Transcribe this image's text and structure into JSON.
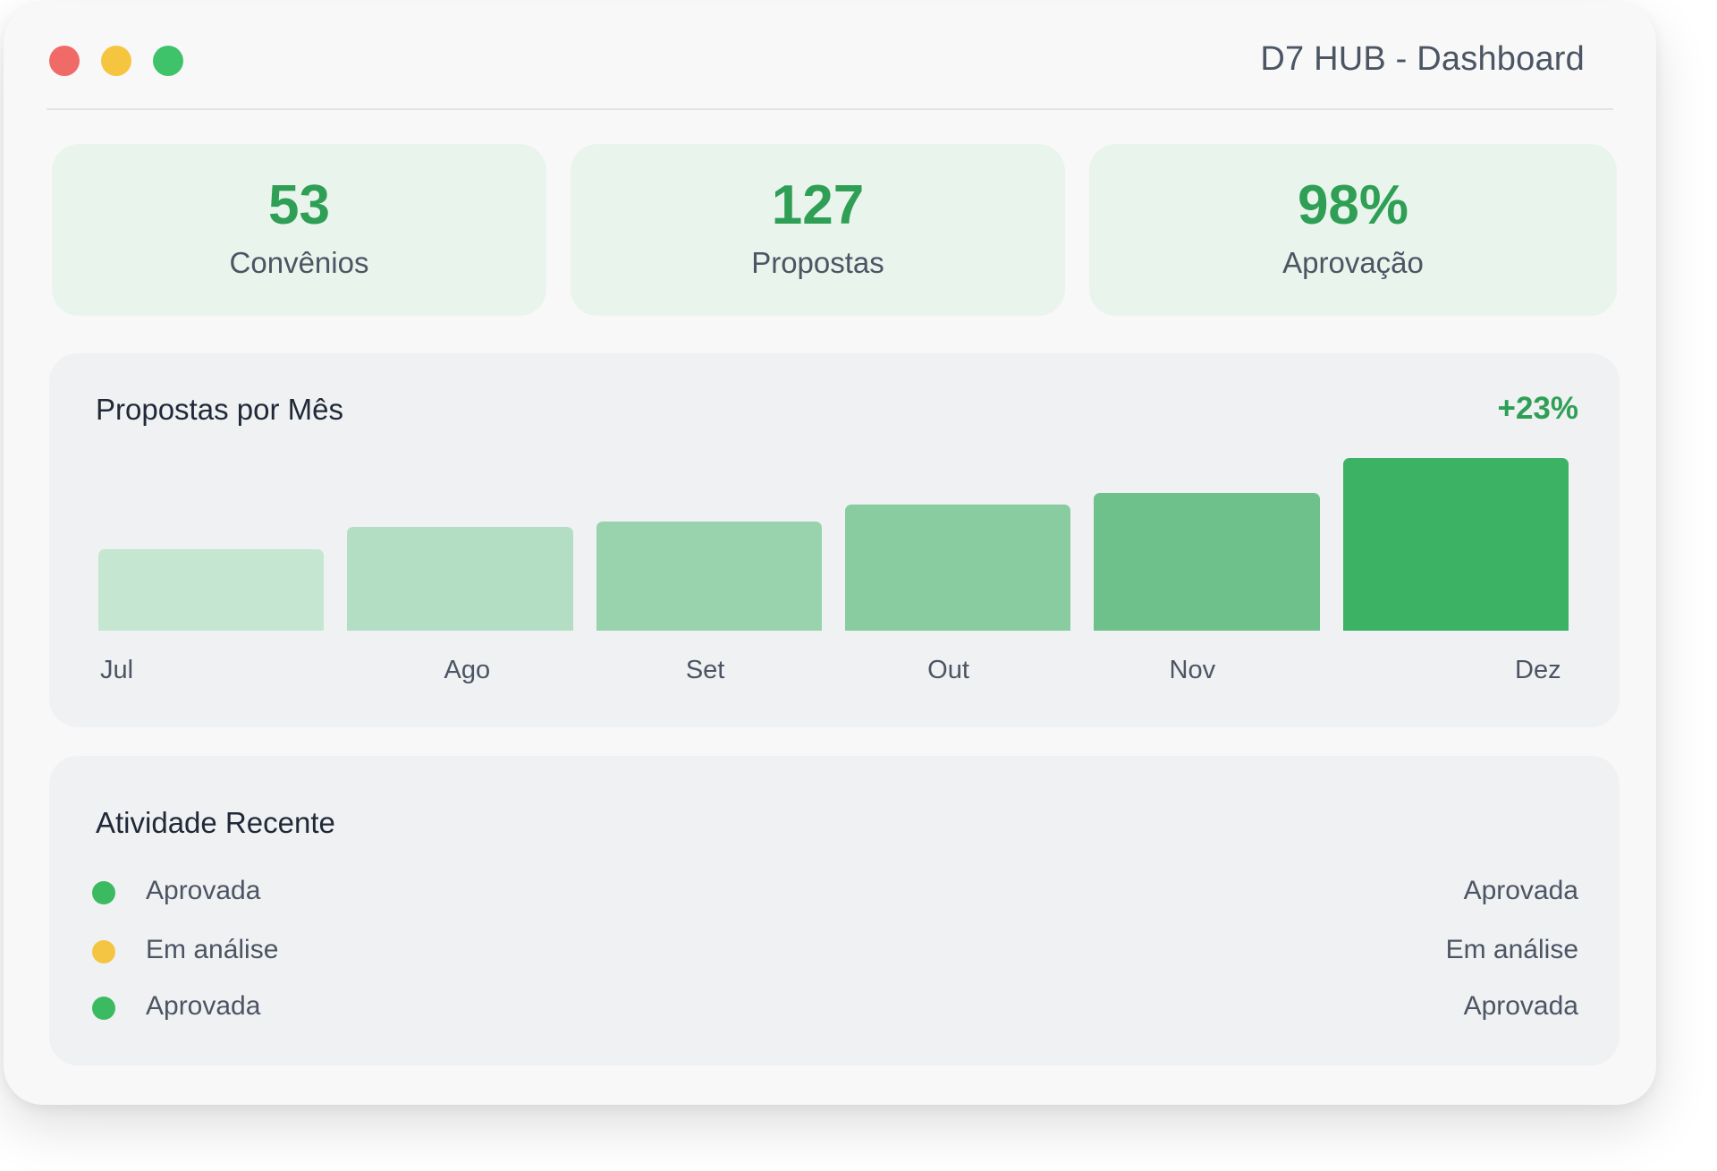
{
  "window": {
    "title": "D7 HUB - Dashboard"
  },
  "stats": [
    {
      "value": "53",
      "label": "Convênios"
    },
    {
      "value": "127",
      "label": "Propostas"
    },
    {
      "value": "98%",
      "label": "Aprovação"
    }
  ],
  "chart_panel": {
    "title": "Propostas por Mês",
    "growth": "+23%"
  },
  "chart_data": {
    "type": "bar",
    "categories": [
      "Jul",
      "Ago",
      "Set",
      "Out",
      "Nov",
      "Dez"
    ],
    "values": [
      47,
      60,
      63,
      73,
      80,
      100
    ],
    "ylim": [
      0,
      100
    ],
    "colors": [
      "#c5e6d1",
      "#b4dec4",
      "#98d3ae",
      "#89cc9f",
      "#6fc18c",
      "#3cb264"
    ]
  },
  "activity": {
    "title": "Atividade Recente",
    "items": [
      {
        "label": "Aprovada",
        "status": "Aprovada",
        "color": "#3cba61"
      },
      {
        "label": "Em análise",
        "status": "Em análise",
        "color": "#f4c542"
      },
      {
        "label": "Aprovada",
        "status": "Aprovada",
        "color": "#3cba61"
      }
    ]
  }
}
